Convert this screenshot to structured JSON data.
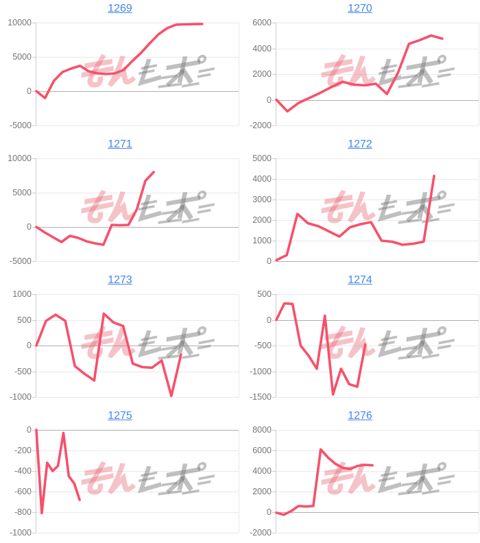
{
  "page": {
    "background": "#ffffff"
  },
  "style": {
    "line_color": "#f8506a",
    "grid_color": "#e8e8e8",
    "zero_color": "#b0b0b0",
    "axis_color": "#cccccc",
    "label_color": "#757575",
    "title_color": "#4285f4"
  },
  "watermark": {
    "text": "みんレポ",
    "pink_text": "みん",
    "gray_text": "レポ",
    "pink_color": "rgba(230,103,117,0.40)",
    "gray_color": "rgba(128,128,128,0.50)"
  },
  "chart_data": [
    {
      "type": "line",
      "title": "1269",
      "title_is_link": true,
      "ylim": [
        -5000,
        10000
      ],
      "y_ticks": [
        10000,
        5000,
        0,
        -5000
      ],
      "values": [
        0,
        -1000,
        1500,
        2800,
        3300,
        3700,
        2900,
        2600,
        2500,
        2600,
        3100,
        4400,
        5600,
        7000,
        8300,
        9200,
        9700,
        9750,
        9780,
        9800
      ],
      "span_frac": 0.82
    },
    {
      "type": "line",
      "title": "1270",
      "title_is_link": true,
      "ylim": [
        -2000,
        6000
      ],
      "y_ticks": [
        6000,
        4000,
        2000,
        0,
        -2000
      ],
      "values": [
        0,
        -900,
        -250,
        150,
        550,
        1000,
        1400,
        1180,
        1120,
        1250,
        450,
        2100,
        4350,
        4650,
        5000,
        4750
      ],
      "span_frac": 0.82
    },
    {
      "type": "line",
      "title": "1271",
      "title_is_link": true,
      "ylim": [
        -5000,
        10000
      ],
      "y_ticks": [
        10000,
        5000,
        0,
        -5000
      ],
      "values": [
        0,
        -800,
        -1500,
        -2200,
        -1300,
        -1600,
        -2100,
        -2400,
        -2600,
        300,
        250,
        300,
        2600,
        6700,
        8000
      ],
      "span_frac": 0.58
    },
    {
      "type": "line",
      "title": "1272",
      "title_is_link": true,
      "ylim": [
        0,
        5000
      ],
      "y_ticks": [
        5000,
        4000,
        3000,
        2000,
        1000,
        0
      ],
      "values": [
        50,
        300,
        2300,
        1850,
        1700,
        1450,
        1200,
        1650,
        1800,
        1900,
        1000,
        950,
        800,
        850,
        950,
        4150
      ],
      "span_frac": 0.78
    },
    {
      "type": "line",
      "title": "1273",
      "title_is_link": true,
      "ylim": [
        -1000,
        1000
      ],
      "y_ticks": [
        1000,
        500,
        0,
        -500,
        -1000
      ],
      "values": [
        0,
        480,
        600,
        480,
        -400,
        -550,
        -680,
        620,
        450,
        380,
        -350,
        -420,
        -430,
        -290,
        -980,
        -180
      ],
      "span_frac": 0.715
    },
    {
      "type": "line",
      "title": "1274",
      "title_is_link": true,
      "ylim": [
        -1500,
        500
      ],
      "y_ticks": [
        500,
        0,
        -500,
        -1000,
        -1500
      ],
      "values": [
        0,
        320,
        310,
        -500,
        -700,
        -950,
        80,
        -1450,
        -950,
        -1250,
        -1300,
        -480
      ],
      "span_frac": 0.44
    },
    {
      "type": "line",
      "title": "1275",
      "title_is_link": true,
      "ylim": [
        -1000,
        0
      ],
      "y_ticks": [
        0,
        -200,
        -400,
        -600,
        -800,
        -1000
      ],
      "values": [
        0,
        -810,
        -320,
        -400,
        -350,
        -30,
        -450,
        -520,
        -680
      ],
      "span_frac": 0.214
    },
    {
      "type": "line",
      "title": "1276",
      "title_is_link": true,
      "ylim": [
        -2000,
        8000
      ],
      "y_ticks": [
        8000,
        6000,
        4000,
        2000,
        0,
        -2000
      ],
      "values": [
        -50,
        -250,
        100,
        600,
        550,
        600,
        6100,
        5300,
        4700,
        4300,
        4200,
        4500,
        4600,
        4550
      ],
      "span_frac": 0.475
    }
  ]
}
